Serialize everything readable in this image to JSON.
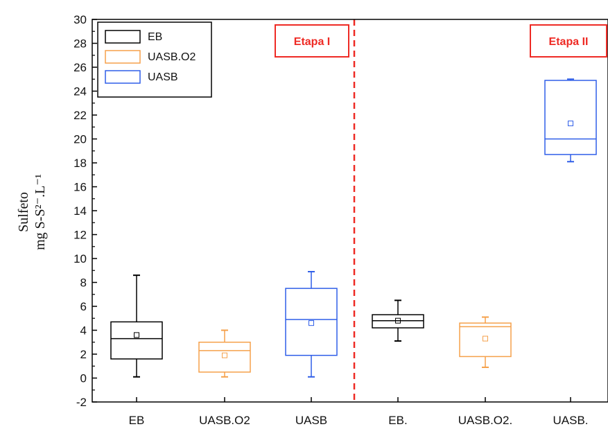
{
  "chart_data": {
    "type": "box",
    "ylabel_line1": "Sulfeto",
    "ylabel_line2": "mg S-S²⁻.L⁻¹",
    "ylim": [
      -2,
      30
    ],
    "yticks": [
      -2,
      0,
      2,
      4,
      6,
      8,
      10,
      12,
      14,
      16,
      18,
      20,
      22,
      24,
      26,
      28,
      30
    ],
    "categories": [
      "EB",
      "UASB.O2",
      "UASB",
      "EB.",
      "UASB.O2.",
      "UASB."
    ],
    "colors": [
      "#000000",
      "#f5a04a",
      "#2f5ee8",
      "#000000",
      "#f5a04a",
      "#2f5ee8"
    ],
    "boxes": [
      {
        "whisker_low": 0.1,
        "q1": 1.6,
        "median": 3.3,
        "q3": 4.7,
        "whisker_high": 8.6,
        "mean": 3.6
      },
      {
        "whisker_low": 0.1,
        "q1": 0.5,
        "median": 2.3,
        "q3": 3.0,
        "whisker_high": 4.0,
        "mean": 1.9
      },
      {
        "whisker_low": 0.1,
        "q1": 1.9,
        "median": 4.9,
        "q3": 7.5,
        "whisker_high": 8.9,
        "mean": 4.6
      },
      {
        "whisker_low": 3.1,
        "q1": 4.2,
        "median": 4.8,
        "q3": 5.3,
        "whisker_high": 6.5,
        "mean": 4.8
      },
      {
        "whisker_low": 0.9,
        "q1": 1.8,
        "median": 4.3,
        "q3": 4.6,
        "whisker_high": 5.1,
        "mean": 3.3
      },
      {
        "whisker_low": 18.1,
        "q1": 18.7,
        "median": 20.0,
        "q3": 24.9,
        "whisker_high": 25.0,
        "mean": 21.3
      }
    ],
    "legend": {
      "placement": "top-left",
      "entries": [
        {
          "label": "EB",
          "color": "#000000"
        },
        {
          "label": "UASB.O2",
          "color": "#f5a04a"
        },
        {
          "label": "UASB",
          "color": "#2f5ee8"
        }
      ]
    },
    "stages": [
      {
        "label": "Etapa I",
        "placement": "top, left of divider"
      },
      {
        "label": "Etapa II",
        "placement": "top-right"
      }
    ],
    "divider_color": "#ee2a24"
  }
}
